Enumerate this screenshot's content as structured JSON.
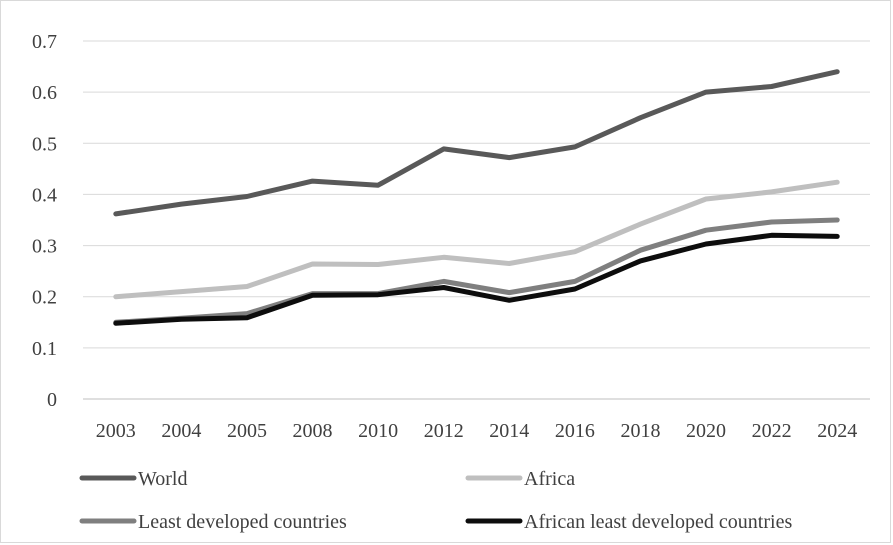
{
  "chart_data": {
    "type": "line",
    "title": "",
    "xlabel": "",
    "ylabel": "",
    "categories": [
      "2003",
      "2004",
      "2005",
      "2008",
      "2010",
      "2012",
      "2014",
      "2016",
      "2018",
      "2020",
      "2022",
      "2024"
    ],
    "ylim": [
      0,
      0.7
    ],
    "yticks": [
      "0",
      "0.1",
      "0.2",
      "0.3",
      "0.4",
      "0.5",
      "0.6",
      "0.7"
    ],
    "grid": "horizontal",
    "legend_position": "bottom",
    "series": [
      {
        "name": "World",
        "color": "#595959",
        "values": [
          0.362,
          0.381,
          0.396,
          0.426,
          0.418,
          0.489,
          0.472,
          0.493,
          0.55,
          0.6,
          0.611,
          0.64
        ]
      },
      {
        "name": "Africa",
        "color": "#bfbfbf",
        "values": [
          0.2,
          0.21,
          0.22,
          0.264,
          0.263,
          0.277,
          0.265,
          0.288,
          0.342,
          0.391,
          0.405,
          0.424
        ]
      },
      {
        "name": "Least developed countries",
        "color": "#7f7f7f",
        "values": [
          0.15,
          0.158,
          0.167,
          0.206,
          0.206,
          0.23,
          0.208,
          0.23,
          0.291,
          0.33,
          0.346,
          0.35
        ]
      },
      {
        "name": "African least developed countries",
        "color": "#0d0d0d",
        "values": [
          0.148,
          0.156,
          0.159,
          0.203,
          0.204,
          0.218,
          0.193,
          0.215,
          0.27,
          0.303,
          0.32,
          0.318
        ]
      }
    ]
  }
}
